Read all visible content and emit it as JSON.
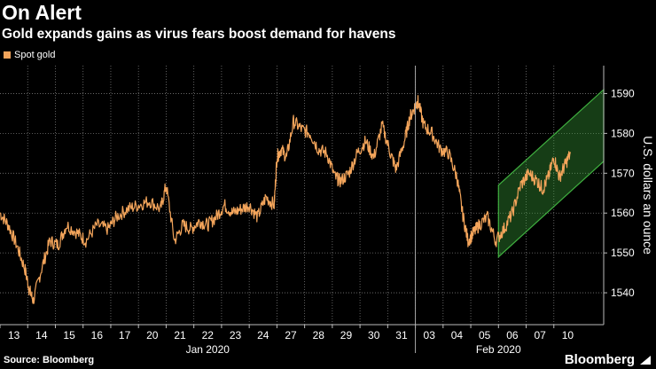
{
  "header": {
    "title": "On Alert",
    "subtitle": "Gold expands gains as virus fears boost demand for havens"
  },
  "legend": {
    "label": "Spot gold",
    "color": "#f4a55b"
  },
  "footer": {
    "source": "Source: Bloomberg",
    "brand": "Bloomberg"
  },
  "chart_data": {
    "type": "line",
    "title": "On Alert",
    "subtitle": "Gold expands gains as virus fears boost demand for havens",
    "xlabel": "",
    "ylabel": "U.S. dollars an ounce",
    "ylim": [
      1532,
      1597
    ],
    "yticks": [
      1540,
      1550,
      1560,
      1570,
      1580,
      1590
    ],
    "xlim": [
      0,
      21.8
    ],
    "xticks": [
      {
        "label": "13",
        "pos": 0.5
      },
      {
        "label": "14",
        "pos": 1.5
      },
      {
        "label": "15",
        "pos": 2.5
      },
      {
        "label": "16",
        "pos": 3.5
      },
      {
        "label": "17",
        "pos": 4.5
      },
      {
        "label": "20",
        "pos": 5.5
      },
      {
        "label": "21",
        "pos": 6.5
      },
      {
        "label": "22",
        "pos": 7.5
      },
      {
        "label": "23",
        "pos": 8.5
      },
      {
        "label": "24",
        "pos": 9.5
      },
      {
        "label": "27",
        "pos": 10.5
      },
      {
        "label": "28",
        "pos": 11.5
      },
      {
        "label": "29",
        "pos": 12.5
      },
      {
        "label": "30",
        "pos": 13.5
      },
      {
        "label": "31",
        "pos": 14.5
      },
      {
        "label": "03",
        "pos": 15.5
      },
      {
        "label": "04",
        "pos": 16.5
      },
      {
        "label": "05",
        "pos": 17.5
      },
      {
        "label": "06",
        "pos": 18.5
      },
      {
        "label": "07",
        "pos": 19.5
      },
      {
        "label": "10",
        "pos": 20.5
      }
    ],
    "month_labels": [
      {
        "label": "Jan 2020",
        "pos": 7.5
      },
      {
        "label": "Feb 2020",
        "pos": 18.0
      }
    ],
    "month_divider": 15.0,
    "grid": true,
    "legend_position": "top-left",
    "series": [
      {
        "name": "Spot gold",
        "color": "#f4a55b",
        "x": [
          0.0,
          0.3,
          0.6,
          0.9,
          1.05,
          1.2,
          1.5,
          1.8,
          2.1,
          2.4,
          2.8,
          3.1,
          3.5,
          3.9,
          4.2,
          4.6,
          5.0,
          5.4,
          5.8,
          6.0,
          6.3,
          6.6,
          6.9,
          7.2,
          7.5,
          7.8,
          8.1,
          8.4,
          8.7,
          9.0,
          9.3,
          9.6,
          9.9,
          10.0,
          10.15,
          10.35,
          10.6,
          10.9,
          11.2,
          11.5,
          11.8,
          12.1,
          12.3,
          12.6,
          12.9,
          13.2,
          13.5,
          13.8,
          14.1,
          14.3,
          14.6,
          14.8,
          15.0,
          15.1,
          15.3,
          15.6,
          15.9,
          16.2,
          16.5,
          16.7,
          16.9,
          17.1,
          17.3,
          17.6,
          17.9,
          18.2,
          18.5,
          18.8,
          19.1,
          19.4,
          19.6,
          19.8,
          20.0,
          20.2,
          20.4,
          20.6
        ],
        "values": [
          1560,
          1557,
          1552,
          1546,
          1541,
          1538,
          1546,
          1553,
          1552,
          1557,
          1555,
          1553,
          1557,
          1556,
          1559,
          1561,
          1562,
          1563,
          1561,
          1567,
          1553,
          1557,
          1556,
          1558,
          1557,
          1559,
          1562,
          1560,
          1561,
          1562,
          1559,
          1564,
          1562,
          1574,
          1576,
          1574,
          1583,
          1581,
          1580,
          1576,
          1575,
          1569,
          1568,
          1570,
          1575,
          1578,
          1574,
          1582,
          1575,
          1571,
          1578,
          1584,
          1587,
          1588,
          1582,
          1580,
          1576,
          1575,
          1569,
          1560,
          1553,
          1555,
          1557,
          1559,
          1553,
          1556,
          1560,
          1567,
          1570,
          1568,
          1566,
          1569,
          1574,
          1569,
          1572,
          1575
        ]
      }
    ],
    "annotations": [
      {
        "type": "trend-channel",
        "color": "#3fae3f",
        "x": [
          18.0,
          21.8
        ],
        "lower": [
          1549,
          1573
        ],
        "upper": [
          1567,
          1591
        ]
      }
    ]
  }
}
